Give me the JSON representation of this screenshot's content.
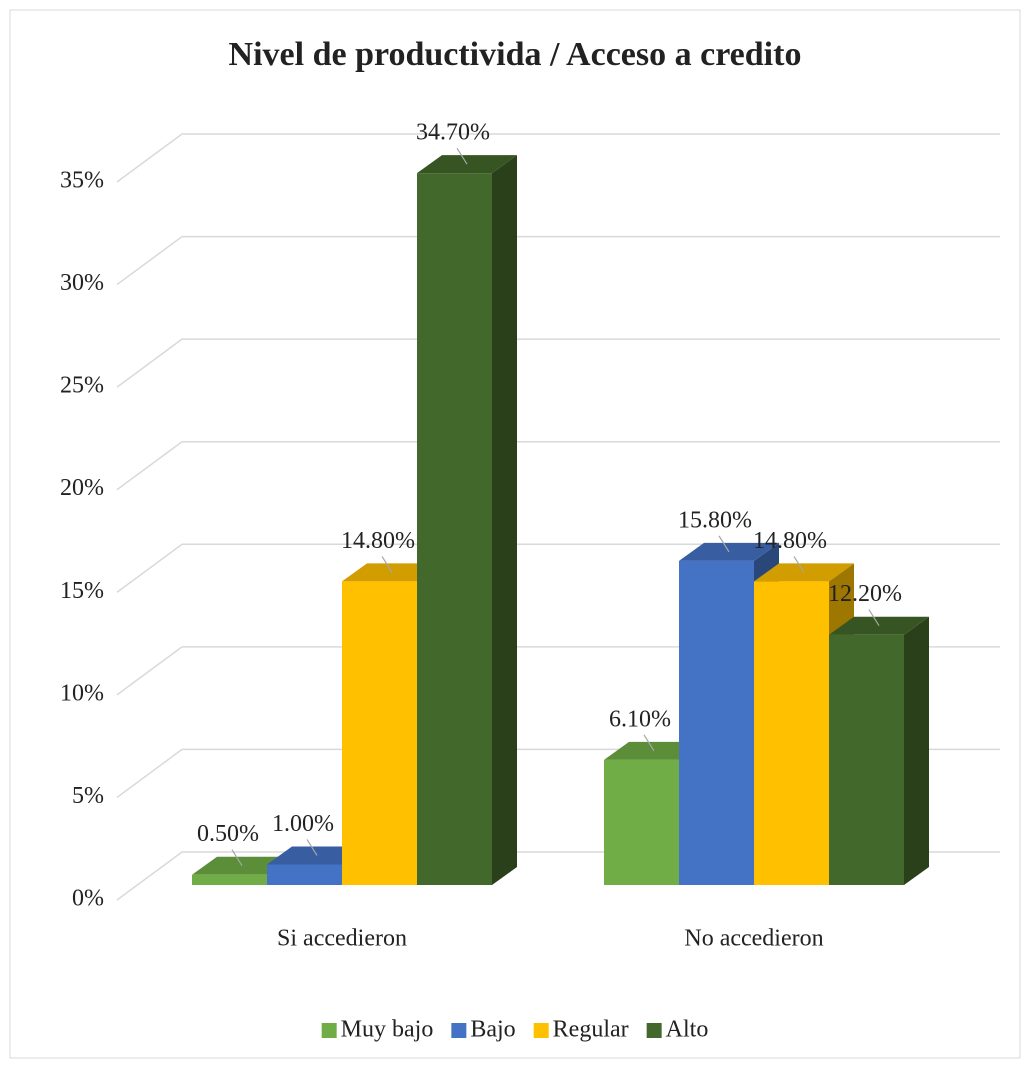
{
  "chart_data": {
    "type": "bar3d",
    "title": "Nivel de productivida / Acceso a credito",
    "categories": [
      "Si accedieron",
      "No accedieron"
    ],
    "series": [
      {
        "name": "Muy bajo",
        "color": "#70ad47",
        "values": [
          0.5,
          6.1
        ],
        "value_labels": [
          "0.50%",
          "6.10%"
        ]
      },
      {
        "name": "Bajo",
        "color": "#4472c4",
        "values": [
          1.0,
          15.8
        ],
        "value_labels": [
          "1.00%",
          "15.80%"
        ]
      },
      {
        "name": "Regular",
        "color": "#ffc000",
        "values": [
          14.8,
          14.8
        ],
        "value_labels": [
          "14.80%",
          "14.80%"
        ]
      },
      {
        "name": "Alto",
        "color": "#43682b",
        "values": [
          34.7,
          12.2
        ],
        "value_labels": [
          "34.70%",
          "12.20%"
        ]
      }
    ],
    "ylim": [
      0,
      35
    ],
    "yticks": [
      {
        "value": 0,
        "label": "0%"
      },
      {
        "value": 5,
        "label": "5%"
      },
      {
        "value": 10,
        "label": "10%"
      },
      {
        "value": 15,
        "label": "15%"
      },
      {
        "value": 20,
        "label": "20%"
      },
      {
        "value": 25,
        "label": "25%"
      },
      {
        "value": 30,
        "label": "30%"
      },
      {
        "value": 35,
        "label": "35%"
      }
    ],
    "grid": true,
    "legend": "bottom"
  }
}
